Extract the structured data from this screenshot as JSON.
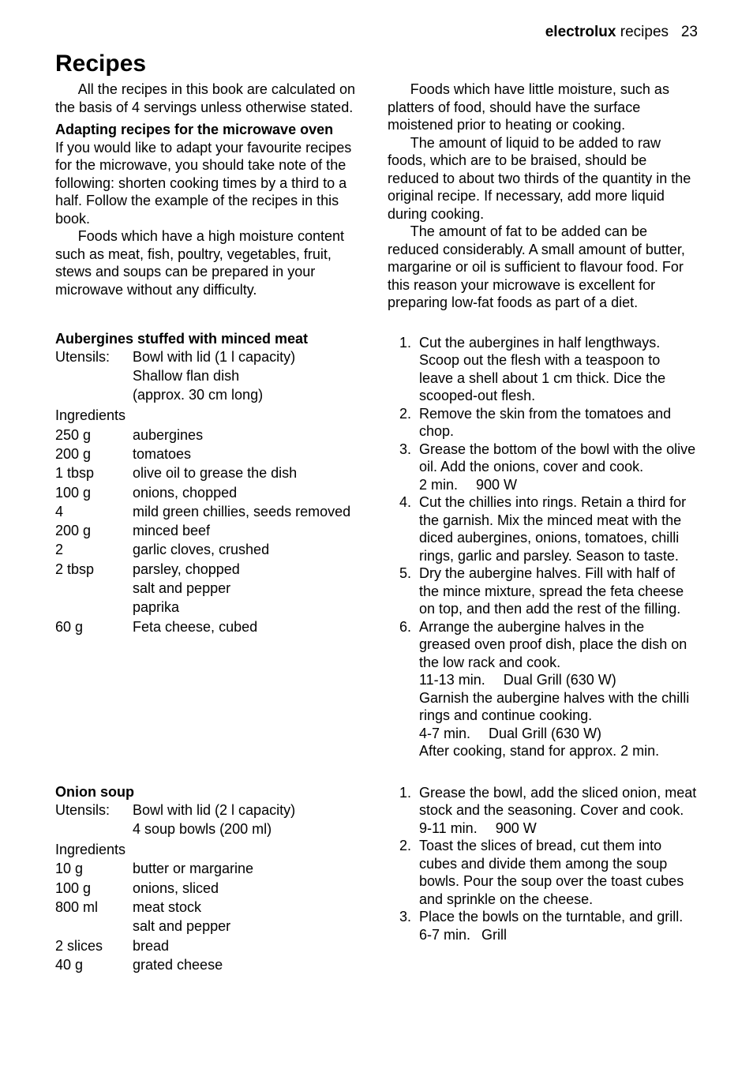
{
  "header": {
    "brand": "electrolux",
    "section": "recipes",
    "page_num": "23"
  },
  "title": "Recipes",
  "intro": {
    "left_p1": "All the recipes in this book are calculated on the basis of 4 servings unless otherwise stated.",
    "adapt_heading": "Adapting recipes for the microwave oven",
    "left_p2": "If you would like to adapt your favourite recipes for the microwave, you should take note of the following: shorten cooking times by a third to a half. Follow the example of the recipes in this book.",
    "left_p3": "Foods which have a high moisture content such as meat, fish, poultry, vegetables, fruit, stews and soups can be prepared in your microwave without any difficulty.",
    "right_p1": "Foods which have little moisture, such as platters of food, should have the surface moistened prior to heating or cooking.",
    "right_p2": "The amount of liquid to be added to raw foods, which are to be braised, should be reduced to about two thirds of the quantity in the original recipe. If necessary, add more liquid during cooking.",
    "right_p3": "The amount of fat to be added can be reduced considerably. A small amount of butter, margarine or oil is sufficient to flavour food. For this reason your microwave is excellent for preparing low-fat foods as part of a diet."
  },
  "recipe_a": {
    "title": "Aubergines stuffed with minced meat",
    "utensils_label": "Utensils:",
    "utensils": [
      "Bowl with lid (1 l capacity)",
      "Shallow flan dish",
      "(approx. 30 cm long)"
    ],
    "ingredients_label": "Ingredients",
    "ingredients": [
      {
        "q": "250 g",
        "i": "aubergines"
      },
      {
        "q": "200 g",
        "i": "tomatoes"
      },
      {
        "q": "1 tbsp",
        "i": "olive oil to grease the dish"
      },
      {
        "q": "100 g",
        "i": "onions, chopped"
      },
      {
        "q": "4",
        "i": "mild green chillies, seeds removed"
      },
      {
        "q": "200 g",
        "i": "minced beef"
      },
      {
        "q": "2",
        "i": "garlic cloves, crushed"
      },
      {
        "q": "2 tbsp",
        "i": "parsley, chopped"
      },
      {
        "q": "",
        "i": "salt and pepper"
      },
      {
        "q": "",
        "i": "paprika"
      },
      {
        "q": "60 g",
        "i": "Feta cheese, cubed"
      }
    ],
    "steps": [
      "Cut the aubergines in half lengthways. Scoop out the flesh with a teaspoon to leave a shell about 1 cm thick. Dice the scooped-out flesh.",
      "Remove the skin from the tomatoes and chop.",
      "Grease the bottom of the bowl with the olive oil. Add the onions, cover and cook.\n2 min.  900 W",
      "Cut the chillies into rings. Retain a third for the garnish. Mix the minced meat with the diced aubergines, onions, tomatoes, chilli rings, garlic and parsley. Season to taste.",
      "Dry the aubergine halves. Fill with half of the mince mixture, spread the feta cheese on top, and then add the rest of the filling.",
      "Arrange the aubergine halves in the greased oven proof dish, place the dish on the low rack and cook.\n11-13 min.  Dual Grill (630 W)\nGarnish the aubergine halves with the chilli rings and continue cooking.\n4-7 min.  Dual Grill (630 W)\nAfter cooking, stand for approx. 2 min."
    ]
  },
  "recipe_b": {
    "title": "Onion soup",
    "utensils_label": "Utensils:",
    "utensils": [
      "Bowl with lid (2 l capacity)",
      "4 soup bowls (200 ml)"
    ],
    "ingredients_label": "Ingredients",
    "ingredients": [
      {
        "q": "10 g",
        "i": "butter or margarine"
      },
      {
        "q": "100 g",
        "i": "onions, sliced"
      },
      {
        "q": "800 ml",
        "i": "meat stock"
      },
      {
        "q": "",
        "i": "salt and pepper"
      },
      {
        "q": "2 slices",
        "i": "bread"
      },
      {
        "q": "40 g",
        "i": "grated cheese"
      }
    ],
    "steps": [
      "Grease the bowl, add the sliced onion, meat stock and the seasoning. Cover and cook.\n9-11 min.  900 W",
      "Toast the slices of bread, cut them into cubes and divide them among the soup bowls. Pour the soup over the toast cubes and sprinkle on the cheese.",
      "Place the bowls on the turntable, and grill.\n6-7 min.  Grill"
    ]
  }
}
